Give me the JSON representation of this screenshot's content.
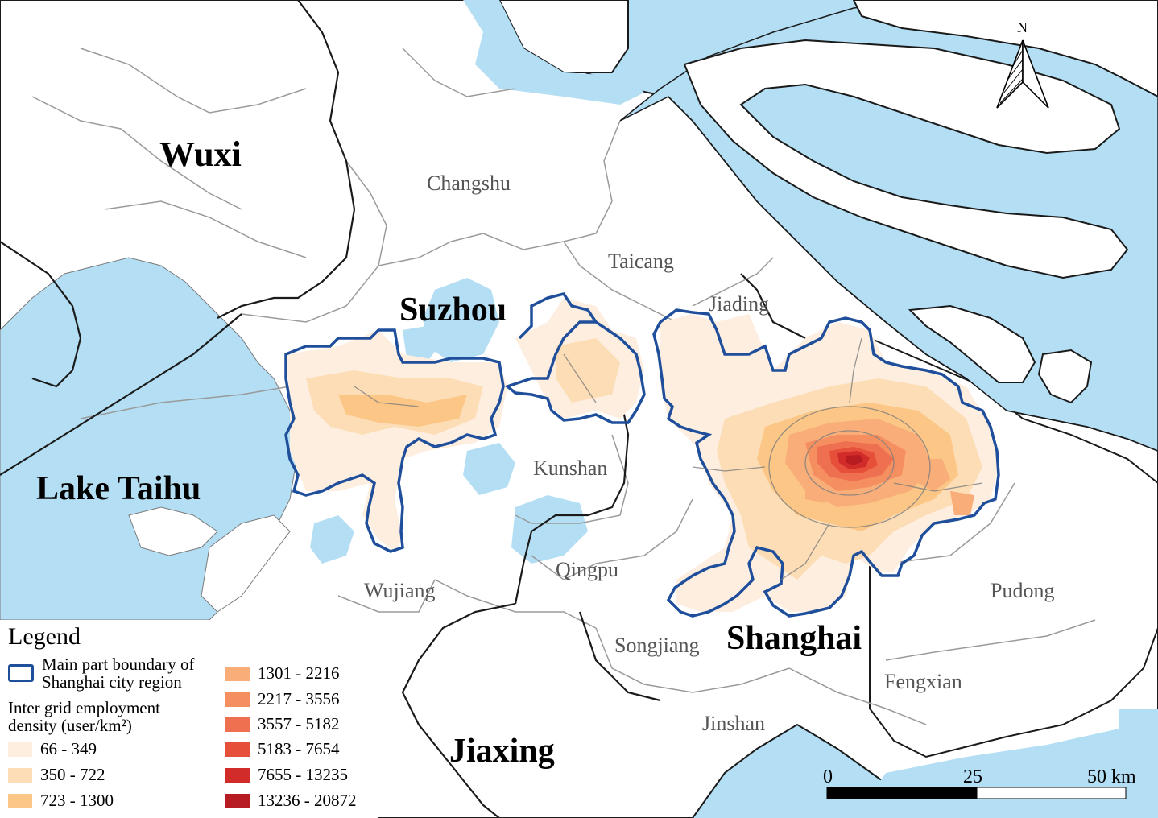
{
  "cities": {
    "wuxi": "Wuxi",
    "suzhou": "Suzhou",
    "shanghai": "Shanghai",
    "jiaxing": "Jiaxing",
    "lake_taihu": "Lake Taihu"
  },
  "districts": {
    "changshu": "Changshu",
    "taicang": "Taicang",
    "jiading": "Jiading",
    "kunshan": "Kunshan",
    "qingpu": "Qingpu",
    "wujiang": "Wujiang",
    "songjiang": "Songjiang",
    "pudong": "Pudong",
    "fengxian": "Fengxian",
    "jinshan": "Jinshan"
  },
  "north_arrow": {
    "label": "N"
  },
  "scale_bar": {
    "tick0": "0",
    "tick1": "25",
    "tick2": "50 km"
  },
  "legend": {
    "title": "Legend",
    "boundary_label_1": "Main part boundary of",
    "boundary_label_2": "Shanghai city region",
    "density_title_1": "Inter grid employment",
    "density_title_2": "density (user/km²)",
    "boundary_color": "#1f4e9b",
    "classes": [
      {
        "label": "66 - 349",
        "color": "#fdeee0"
      },
      {
        "label": "350 - 722",
        "color": "#fdddb5"
      },
      {
        "label": "723 - 1300",
        "color": "#fcc786"
      },
      {
        "label": "1301 - 2216",
        "color": "#f9ae79"
      },
      {
        "label": "2217 - 3556",
        "color": "#f58f5f"
      },
      {
        "label": "3557 - 5182",
        "color": "#ef7050"
      },
      {
        "label": "5183 - 7654",
        "color": "#e64f3a"
      },
      {
        "label": "7655 - 13235",
        "color": "#d22c2a"
      },
      {
        "label": "13236 - 20872",
        "color": "#b71c23"
      }
    ]
  },
  "colors": {
    "water": "#b3def3",
    "land": "#ffffff",
    "district_border": "#9a9a9a",
    "province_border": "#1a1a1a"
  }
}
